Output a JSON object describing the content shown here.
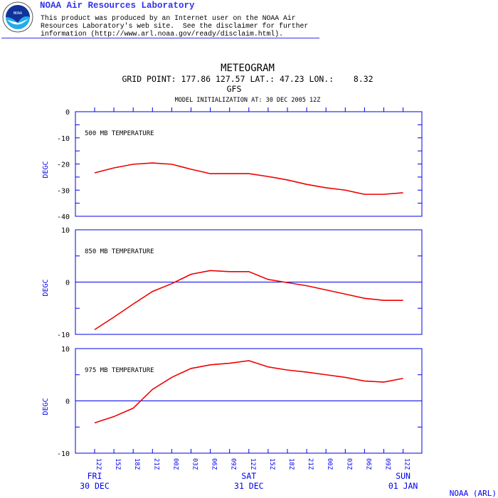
{
  "header": {
    "logo_text": "NOAA",
    "title": "NOAA Air Resources Laboratory",
    "disclaimer_lines": [
      "This product was produced by an Internet user on the NOAA Air",
      "Resources Laboratory's web site.  See the disclaimer for further",
      "information (http://www.arl.noaa.gov/ready/disclaim.html)."
    ]
  },
  "colors": {
    "axis": "#0000ee",
    "series": "#ee0000",
    "header": "#3333ee"
  },
  "footer": "NOAA (ARL)",
  "chart_data": [
    {
      "type": "line",
      "title": "METEOGRAM",
      "subtitle": "GRID POINT: 177.86 127.57 LAT.: 47.23 LON.:    8.32",
      "model": "GFS",
      "init": "MODEL INITIALIZATION AT: 30 DEC 2005 12Z",
      "label": "500 MB  TEMPERATURE",
      "ylabel": "DEGC",
      "ylim": [
        -40,
        0
      ],
      "yticks": [
        "0",
        "-10",
        "-20",
        "-30",
        "-40"
      ],
      "values": [
        -23.4,
        -21.5,
        -20.1,
        -19.6,
        -20.1,
        -22,
        -23.7,
        -23.7,
        -23.7,
        -24.8,
        -26.1,
        -27.8,
        -29.1,
        -30,
        -31.6,
        -31.6,
        -31
      ]
    },
    {
      "type": "line",
      "label": "850 MB  TEMPERATURE",
      "ylabel": "DEGC",
      "ylim": [
        -10,
        10
      ],
      "yticks": [
        "10",
        "0",
        "-10"
      ],
      "values": [
        -9.1,
        -6.7,
        -4.2,
        -1.8,
        -0.3,
        1.5,
        2.2,
        2.0,
        2.0,
        0.5,
        -0.1,
        -0.7,
        -1.5,
        -2.3,
        -3.1,
        -3.5,
        -3.5
      ]
    },
    {
      "type": "line",
      "label": "975 MB  TEMPERATURE",
      "ylabel": "DEGC",
      "ylim": [
        -10,
        10
      ],
      "yticks": [
        "10",
        "0",
        "-10"
      ],
      "values": [
        -4.2,
        -3,
        -1.4,
        2.2,
        4.5,
        6.2,
        6.9,
        7.2,
        7.7,
        6.5,
        5.9,
        5.5,
        5,
        4.5,
        3.8,
        3.6,
        4.3
      ]
    }
  ],
  "x_ticks": [
    "12Z",
    "15Z",
    "18Z",
    "21Z",
    "00Z",
    "03Z",
    "06Z",
    "09Z",
    "12Z",
    "15Z",
    "18Z",
    "21Z",
    "00Z",
    "03Z",
    "06Z",
    "09Z",
    "12Z"
  ],
  "days": [
    {
      "day": "FRI",
      "date": "30 DEC"
    },
    {
      "day": "SAT",
      "date": "31 DEC"
    },
    {
      "day": "SUN",
      "date": "01 JAN"
    }
  ]
}
